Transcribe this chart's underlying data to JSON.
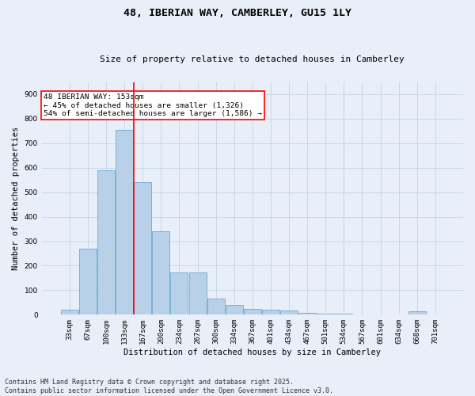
{
  "title": "48, IBERIAN WAY, CAMBERLEY, GU15 1LY",
  "subtitle": "Size of property relative to detached houses in Camberley",
  "xlabel": "Distribution of detached houses by size in Camberley",
  "ylabel": "Number of detached properties",
  "categories": [
    "33sqm",
    "67sqm",
    "100sqm",
    "133sqm",
    "167sqm",
    "200sqm",
    "234sqm",
    "267sqm",
    "300sqm",
    "334sqm",
    "367sqm",
    "401sqm",
    "434sqm",
    "467sqm",
    "501sqm",
    "534sqm",
    "567sqm",
    "601sqm",
    "634sqm",
    "668sqm",
    "701sqm"
  ],
  "values": [
    22,
    270,
    590,
    755,
    540,
    340,
    172,
    172,
    65,
    40,
    25,
    20,
    18,
    8,
    5,
    3,
    2,
    0,
    0,
    15,
    2
  ],
  "bar_color": "#b8d0e8",
  "bar_edge_color": "#6aaad4",
  "grid_color": "#c8d8e8",
  "bg_color": "#e8eff8",
  "vline_color": "red",
  "vline_x_index": 3.5,
  "annotation_text": "48 IBERIAN WAY: 153sqm\n← 45% of detached houses are smaller (1,326)\n54% of semi-detached houses are larger (1,586) →",
  "annotation_box_color": "white",
  "annotation_box_edge": "red",
  "footer": "Contains HM Land Registry data © Crown copyright and database right 2025.\nContains public sector information licensed under the Open Government Licence v3.0.",
  "ylim": [
    0,
    950
  ],
  "yticks": [
    0,
    100,
    200,
    300,
    400,
    500,
    600,
    700,
    800,
    900
  ],
  "title_fontsize": 9.5,
  "subtitle_fontsize": 8,
  "ylabel_fontsize": 7.5,
  "xlabel_fontsize": 7.5,
  "tick_fontsize": 6.5,
  "ann_fontsize": 6.8,
  "footer_fontsize": 6
}
